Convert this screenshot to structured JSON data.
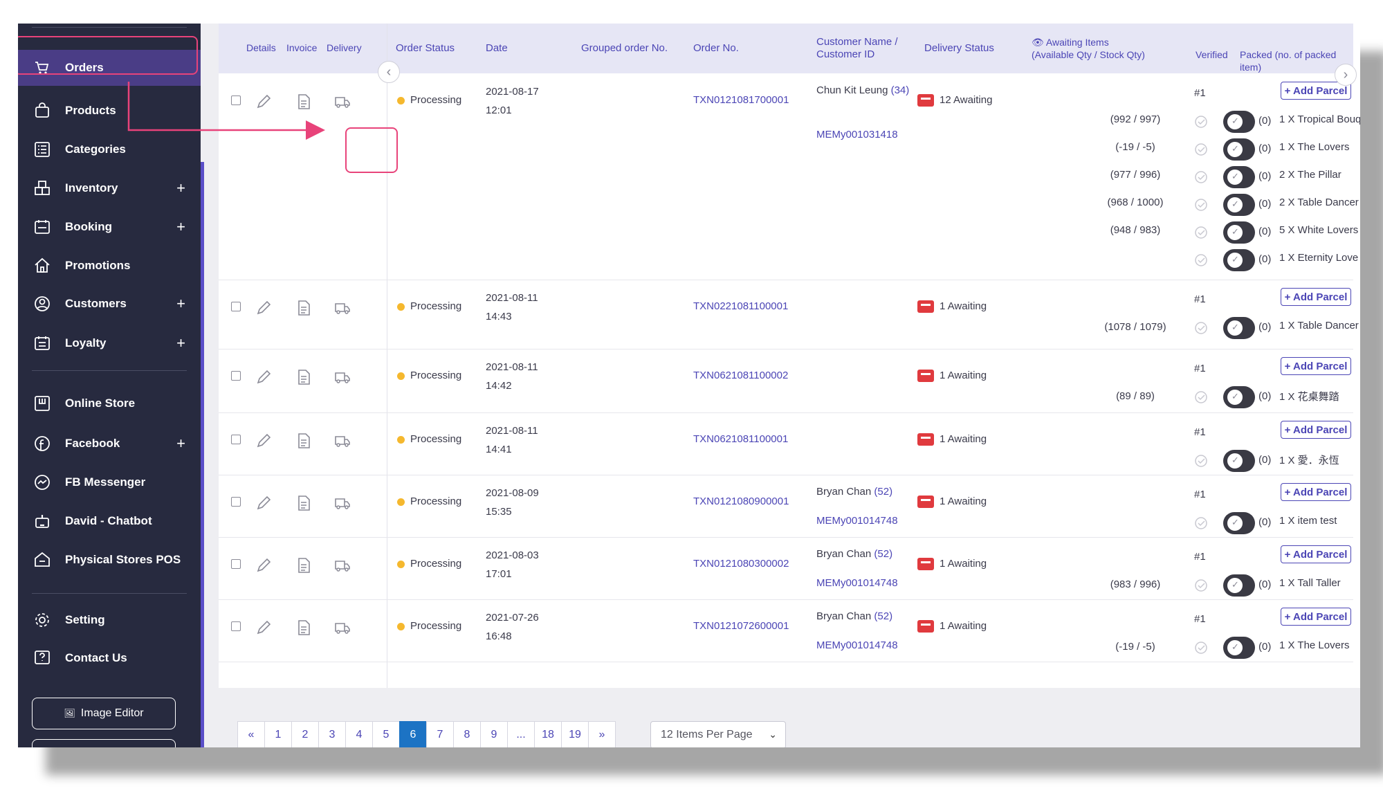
{
  "sidebar": {
    "items": [
      {
        "label": "Orders",
        "icon": "cart-icon",
        "plus": ""
      },
      {
        "label": "Products",
        "icon": "bag-icon",
        "plus": ""
      },
      {
        "label": "Categories",
        "icon": "list-icon",
        "plus": ""
      },
      {
        "label": "Inventory",
        "icon": "boxes-icon",
        "plus": "+"
      },
      {
        "label": "Booking",
        "icon": "calendar-icon",
        "plus": "+"
      },
      {
        "label": "Promotions",
        "icon": "house-icon",
        "plus": ""
      },
      {
        "label": "Customers",
        "icon": "user-circle-icon",
        "plus": "+"
      },
      {
        "label": "Loyalty",
        "icon": "calendar-list-icon",
        "plus": "+"
      },
      {
        "label": "Online Store",
        "icon": "store-icon",
        "plus": ""
      },
      {
        "label": "Facebook",
        "icon": "facebook-icon",
        "plus": "+"
      },
      {
        "label": "FB Messenger",
        "icon": "messenger-icon",
        "plus": ""
      },
      {
        "label": "David - Chatbot",
        "icon": "robot-icon",
        "plus": ""
      },
      {
        "label": "Physical Stores POS",
        "icon": "shop-icon",
        "plus": ""
      },
      {
        "label": "Setting",
        "icon": "gear-icon",
        "plus": ""
      },
      {
        "label": "Contact Us",
        "icon": "help-icon",
        "plus": ""
      }
    ],
    "image_editor": "Image Editor"
  },
  "table": {
    "headers": {
      "details": "Details",
      "invoice": "Invoice",
      "delivery": "Delivery",
      "order_status": "Order Status",
      "date": "Date",
      "grouped": "Grouped order No.",
      "order_no": "Order No.",
      "customer_1": "Customer Name /",
      "customer_2": "Customer ID",
      "delivery_status": "Delivery Status",
      "awaiting_1": "Awaiting Items",
      "awaiting_2": "(Available Qty / Stock Qty)",
      "verified": "Verified",
      "packed": "Packed (no. of packed item)"
    },
    "rows": [
      {
        "status": "Processing",
        "date": "2021-08-17",
        "time": "12:01",
        "order_no": "TXN0121081700001",
        "customer": "Chun Kit Leung",
        "customer_count": "(34)",
        "customer_id": "MEMy001031418",
        "delivery": "12 Awaiting",
        "hash": "#1",
        "add": "+ Add Parcel",
        "items": [
          {
            "stock": "(992 / 997)",
            "item": "1 X Tropical Bouq"
          },
          {
            "stock": "(-19 / -5)",
            "item": "1 X The Lovers"
          },
          {
            "stock": "(977 / 996)",
            "item": "2 X The Pillar"
          },
          {
            "stock": "(968 / 1000)",
            "item": "2 X Table Dancer"
          },
          {
            "stock": "(948 / 983)",
            "item": "5 X White Lovers"
          },
          {
            "stock": "",
            "item": "1 X Eternity Love"
          }
        ]
      },
      {
        "status": "Processing",
        "date": "2021-08-11",
        "time": "14:43",
        "order_no": "TXN0221081100001",
        "customer": "",
        "customer_count": "",
        "customer_id": "",
        "delivery": "1 Awaiting",
        "hash": "#1",
        "add": "+ Add Parcel",
        "items": [
          {
            "stock": "(1078 / 1079)",
            "item": "1 X Table Dancer"
          }
        ]
      },
      {
        "status": "Processing",
        "date": "2021-08-11",
        "time": "14:42",
        "order_no": "TXN0621081100002",
        "customer": "",
        "customer_count": "",
        "customer_id": "",
        "delivery": "1 Awaiting",
        "hash": "#1",
        "add": "+ Add Parcel",
        "items": [
          {
            "stock": "(89 / 89)",
            "item": "1 X 花桌舞踏"
          }
        ]
      },
      {
        "status": "Processing",
        "date": "2021-08-11",
        "time": "14:41",
        "order_no": "TXN0621081100001",
        "customer": "",
        "customer_count": "",
        "customer_id": "",
        "delivery": "1 Awaiting",
        "hash": "#1",
        "add": "+ Add Parcel",
        "items": [
          {
            "stock": "",
            "item": "1 X 愛．永恆"
          }
        ]
      },
      {
        "status": "Processing",
        "date": "2021-08-09",
        "time": "15:35",
        "order_no": "TXN0121080900001",
        "customer": "Bryan Chan",
        "customer_count": "(52)",
        "customer_id": "MEMy001014748",
        "delivery": "1 Awaiting",
        "hash": "#1",
        "add": "+ Add Parcel",
        "items": [
          {
            "stock": "",
            "item": "1 X item test"
          }
        ]
      },
      {
        "status": "Processing",
        "date": "2021-08-03",
        "time": "17:01",
        "order_no": "TXN0121080300002",
        "customer": "Bryan Chan",
        "customer_count": "(52)",
        "customer_id": "MEMy001014748",
        "delivery": "1 Awaiting",
        "hash": "#1",
        "add": "+ Add Parcel",
        "items": [
          {
            "stock": "(983 / 996)",
            "item": "1 X Tall Taller"
          }
        ]
      },
      {
        "status": "Processing",
        "date": "2021-07-26",
        "time": "16:48",
        "order_no": "TXN0121072600001",
        "customer": "Bryan Chan",
        "customer_count": "(52)",
        "customer_id": "MEMy001014748",
        "delivery": "1 Awaiting",
        "hash": "#1",
        "add": "+ Add Parcel",
        "items": [
          {
            "stock": "(-19 / -5)",
            "item": "1 X The Lovers"
          }
        ]
      }
    ],
    "toggle_count": "(0)"
  },
  "pagination": {
    "pages": [
      "«",
      "1",
      "2",
      "3",
      "4",
      "5",
      "6",
      "7",
      "8",
      "9",
      "...",
      "18",
      "19",
      "»"
    ],
    "active": "6",
    "per_page": "12 Items Per Page"
  },
  "colors": {
    "sidebar": "#272a3f",
    "accent": "#4b45b5",
    "highlight": "#e8437a",
    "status": "#f5b82e",
    "delivery": "#e03a3e",
    "page_active": "#1c73c4"
  }
}
